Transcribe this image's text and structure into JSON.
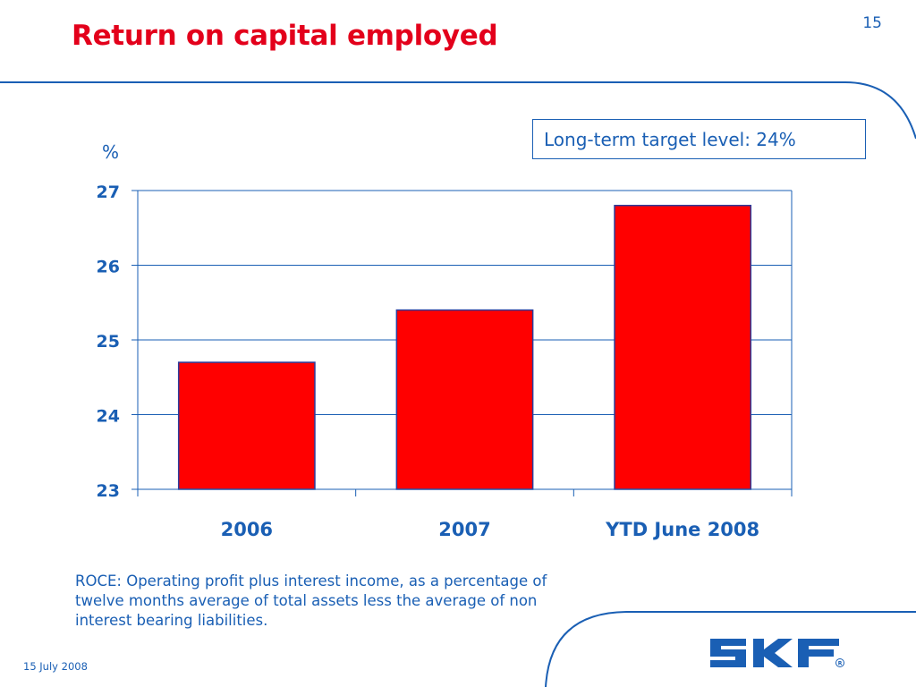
{
  "slide": {
    "title": "Return on capital employed",
    "page_number": "15",
    "target_note": "Long-term target level: 24%",
    "footnote": "ROCE: Operating profit plus interest income, as a percentage of twelve months average of total assets less the average of non interest bearing liabilities.",
    "date": "15 July 2008",
    "logo_text": "SKF"
  },
  "colors": {
    "accent_red": "#ff0000",
    "title_red": "#e3001b",
    "brand_blue": "#1a5fb4"
  },
  "chart_data": {
    "type": "bar",
    "categories": [
      "2006",
      "2007",
      "YTD June 2008"
    ],
    "values": [
      24.7,
      25.4,
      26.8
    ],
    "title": "",
    "xlabel": "",
    "ylabel": "%",
    "ylim": [
      23,
      27
    ],
    "yticks": [
      "23",
      "24",
      "25",
      "26",
      "27"
    ],
    "grid": true,
    "legend": "none"
  }
}
